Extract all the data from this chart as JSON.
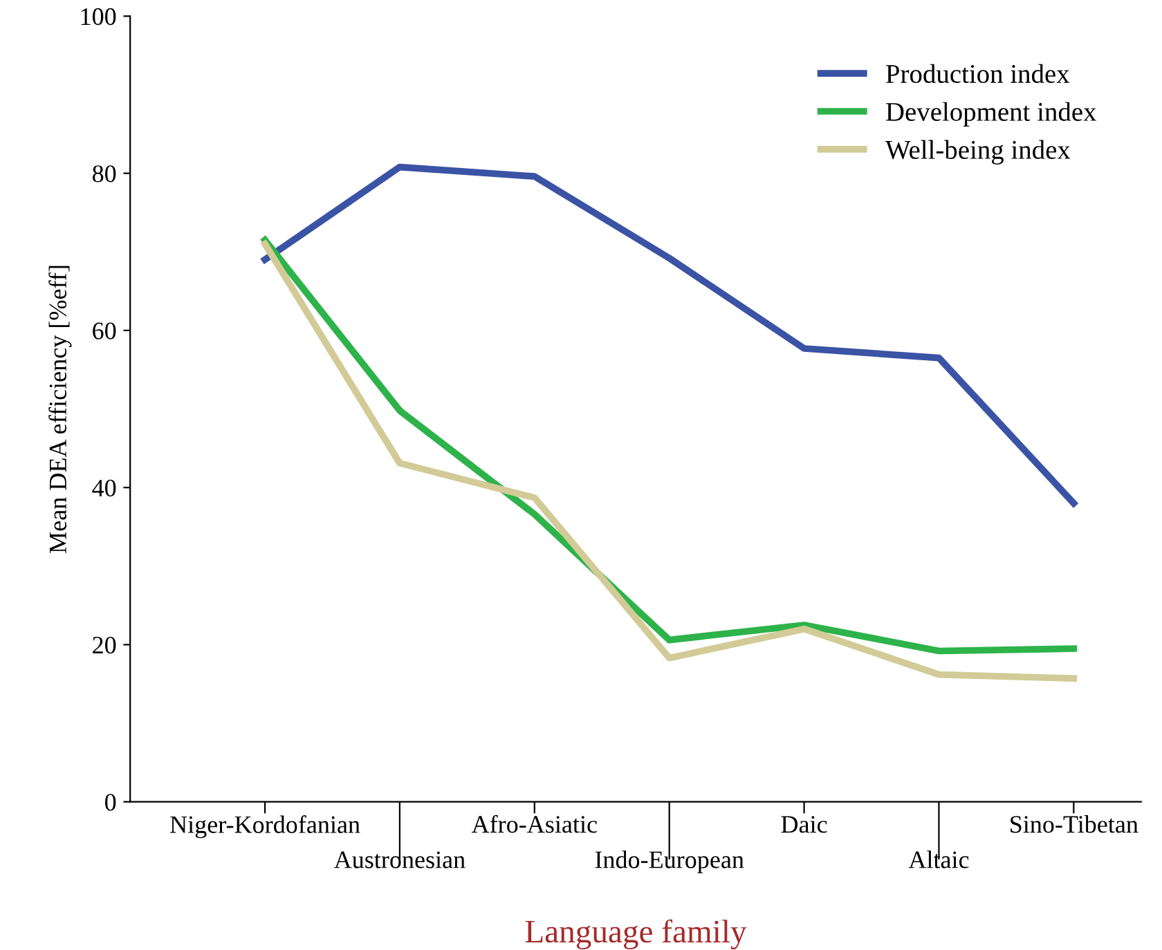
{
  "chart_data": {
    "type": "line",
    "xlabel": "Language family",
    "ylabel": "Mean DEA efficiency [%eff]",
    "categories": [
      "Niger-Kordofanian",
      "Austronesian",
      "Afro-Asiatic",
      "Indo-European",
      "Daic",
      "Altaic",
      "Sino-Tibetan"
    ],
    "series": [
      {
        "name": "Production index",
        "color": "#3a53a4",
        "values": [
          69.0,
          80.8,
          79.6,
          69.2,
          57.7,
          56.5,
          38.0
        ]
      },
      {
        "name": "Development index",
        "color": "#2db34a",
        "values": [
          71.5,
          49.8,
          36.6,
          20.6,
          22.5,
          19.2,
          19.5
        ]
      },
      {
        "name": "Well-being index",
        "color": "#d3cb97",
        "values": [
          71.0,
          43.1,
          38.7,
          18.3,
          22.0,
          16.2,
          15.7
        ]
      }
    ],
    "ylim": [
      0,
      100
    ],
    "yticks": [
      0,
      20,
      40,
      60,
      80,
      100
    ],
    "grid": false,
    "legend": "top right",
    "marker": "none",
    "line_style": "solid"
  }
}
